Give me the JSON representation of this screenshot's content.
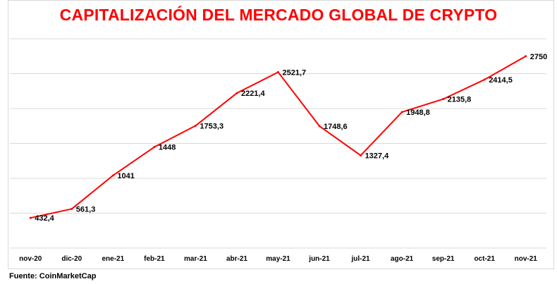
{
  "chart_data": {
    "type": "line",
    "title": "CAPITALIZACIÓN DEL MERCADO GLOBAL DE CRYPTO",
    "categories": [
      "nov-20",
      "dic-20",
      "ene-21",
      "feb-21",
      "mar-21",
      "abr-21",
      "may-21",
      "jun-21",
      "jul-21",
      "ago-21",
      "sep-21",
      "oct-21",
      "nov-21"
    ],
    "values": [
      432.4,
      561.3,
      1041,
      1448,
      1753.3,
      2221.4,
      2521.7,
      1748.6,
      1327.4,
      1948.8,
      2135.8,
      2414.5,
      2750
    ],
    "data_labels": [
      "432,4",
      "561,3",
      "1041",
      "1448",
      "1753,3",
      "2221,4",
      "2521,7",
      "1748,6",
      "1327,4",
      "1948,8",
      "2135,8",
      "2414,5",
      "2750"
    ],
    "ylim": [
      0,
      3000
    ],
    "y_gridline_step": 500,
    "y_tick_labels_shown": false,
    "grid": true,
    "legend": "none",
    "line_color": "#ff0000",
    "title_color": "#ff0000",
    "gridline_color": "#d9d9d9"
  },
  "source": "Fuente: CoinMarketCap"
}
